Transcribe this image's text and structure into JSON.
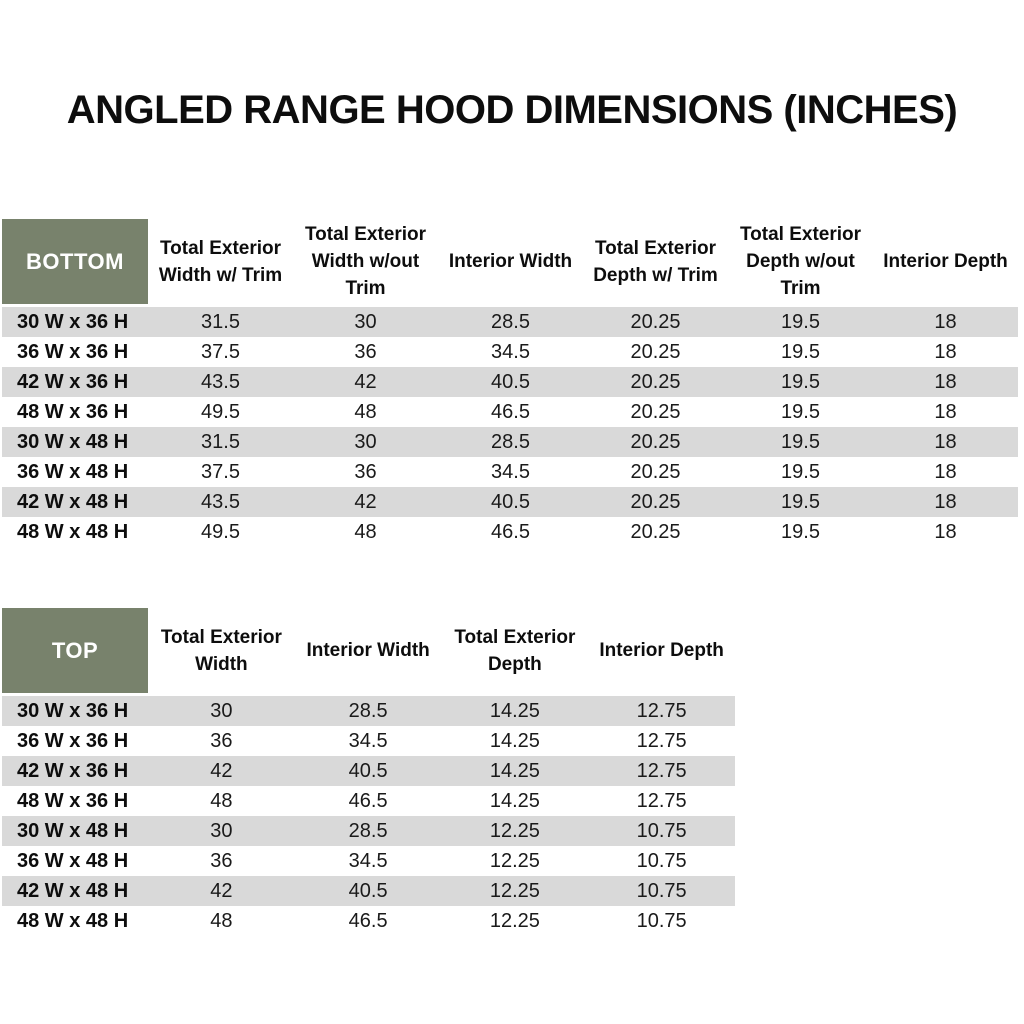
{
  "title": "ANGLED RANGE HOOD DIMENSIONS (INCHES)",
  "colors": {
    "background": "#FFFFFF",
    "header_bg": "#78826C",
    "header_text": "#FFFFFF",
    "stripe": "#D9D9D9",
    "text": "#111111"
  },
  "tables": [
    {
      "id": "bottom",
      "corner_label": "BOTTOM",
      "columns": [
        "Total Exterior Width w/ Trim",
        "Total Exterior Width w/out Trim",
        "Interior Width",
        "Total Exterior Depth w/ Trim",
        "Total Exterior Depth w/out Trim",
        "Interior Depth"
      ],
      "rows": [
        {
          "label": "30 W x 36 H",
          "values": [
            "31.5",
            "30",
            "28.5",
            "20.25",
            "19.5",
            "18"
          ]
        },
        {
          "label": "36 W x 36 H",
          "values": [
            "37.5",
            "36",
            "34.5",
            "20.25",
            "19.5",
            "18"
          ]
        },
        {
          "label": "42 W x 36 H",
          "values": [
            "43.5",
            "42",
            "40.5",
            "20.25",
            "19.5",
            "18"
          ]
        },
        {
          "label": "48 W x 36 H",
          "values": [
            "49.5",
            "48",
            "46.5",
            "20.25",
            "19.5",
            "18"
          ]
        },
        {
          "label": "30 W x 48 H",
          "values": [
            "31.5",
            "30",
            "28.5",
            "20.25",
            "19.5",
            "18"
          ]
        },
        {
          "label": "36 W x 48 H",
          "values": [
            "37.5",
            "36",
            "34.5",
            "20.25",
            "19.5",
            "18"
          ]
        },
        {
          "label": "42 W x 48 H",
          "values": [
            "43.5",
            "42",
            "40.5",
            "20.25",
            "19.5",
            "18"
          ]
        },
        {
          "label": "48 W x 48 H",
          "values": [
            "49.5",
            "48",
            "46.5",
            "20.25",
            "19.5",
            "18"
          ]
        }
      ]
    },
    {
      "id": "top",
      "corner_label": "TOP",
      "columns": [
        "Total Exterior Width",
        "Interior Width",
        "Total Exterior Depth",
        "Interior Depth"
      ],
      "rows": [
        {
          "label": "30 W x 36 H",
          "values": [
            "30",
            "28.5",
            "14.25",
            "12.75"
          ]
        },
        {
          "label": "36 W x 36 H",
          "values": [
            "36",
            "34.5",
            "14.25",
            "12.75"
          ]
        },
        {
          "label": "42 W x 36 H",
          "values": [
            "42",
            "40.5",
            "14.25",
            "12.75"
          ]
        },
        {
          "label": "48 W x 36 H",
          "values": [
            "48",
            "46.5",
            "14.25",
            "12.75"
          ]
        },
        {
          "label": "30 W x 48 H",
          "values": [
            "30",
            "28.5",
            "12.25",
            "10.75"
          ]
        },
        {
          "label": "36 W x 48 H",
          "values": [
            "36",
            "34.5",
            "12.25",
            "10.75"
          ]
        },
        {
          "label": "42 W x 48 H",
          "values": [
            "42",
            "40.5",
            "12.25",
            "10.75"
          ]
        },
        {
          "label": "48 W x 48 H",
          "values": [
            "48",
            "46.5",
            "12.25",
            "10.75"
          ]
        }
      ]
    }
  ]
}
